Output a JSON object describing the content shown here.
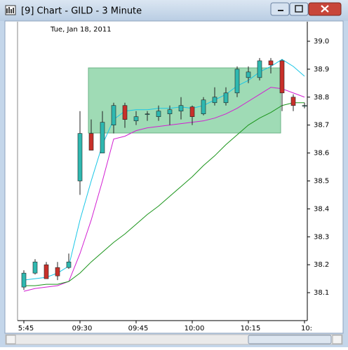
{
  "window": {
    "title": "[9]  Chart - GILD - 3 Minute"
  },
  "chart_data": {
    "type": "candlestick",
    "subtitle": "Tue, Jan 18, 2011",
    "categories": [
      "5:45",
      null,
      null,
      null,
      null,
      "09:30",
      null,
      null,
      null,
      null,
      "09:45",
      null,
      null,
      null,
      null,
      "10:00",
      null,
      null,
      null,
      null,
      "10:15",
      null,
      null,
      null,
      null,
      "10:"
    ],
    "open": [
      38.12,
      38.17,
      38.2,
      38.19,
      38.19,
      38.5,
      38.67,
      38.6,
      38.7,
      38.77,
      38.715,
      38.74,
      38.73,
      38.74,
      38.75,
      38.765,
      38.74,
      38.78,
      38.78,
      38.815,
      38.87,
      38.87,
      38.93,
      38.93,
      38.8,
      38.77
    ],
    "high": [
      38.18,
      38.22,
      38.21,
      38.21,
      38.24,
      38.75,
      38.72,
      38.75,
      38.78,
      38.78,
      38.75,
      38.75,
      38.77,
      38.77,
      38.8,
      38.77,
      38.8,
      38.835,
      38.835,
      38.91,
      38.91,
      38.94,
      38.94,
      38.935,
      38.81,
      38.78
    ],
    "low": [
      38.11,
      38.165,
      38.15,
      38.145,
      38.185,
      38.45,
      38.61,
      38.6,
      38.67,
      38.69,
      38.7,
      38.715,
      38.715,
      38.7,
      38.72,
      38.7,
      38.735,
      38.77,
      38.77,
      38.8,
      38.85,
      38.86,
      38.885,
      38.75,
      38.75,
      38.76
    ],
    "close": [
      38.17,
      38.21,
      38.15,
      38.16,
      38.21,
      38.67,
      38.61,
      38.71,
      38.77,
      38.72,
      38.73,
      38.74,
      38.75,
      38.755,
      38.77,
      38.73,
      38.79,
      38.8,
      38.815,
      38.9,
      38.89,
      38.93,
      38.915,
      38.815,
      38.77,
      38.77
    ],
    "up_color": "#2fb8b0",
    "down_color": "#c8302a",
    "series": [
      {
        "color": "#19c6e6",
        "values": [
          38.145,
          38.15,
          38.155,
          38.17,
          38.195,
          38.36,
          38.5,
          38.63,
          38.72,
          38.75,
          38.755,
          38.755,
          38.76,
          38.76,
          38.765,
          38.76,
          38.77,
          38.79,
          38.81,
          38.84,
          38.86,
          38.89,
          38.91,
          38.935,
          38.91,
          38.875
        ]
      },
      {
        "color": "#d21ed2",
        "values": [
          38.105,
          38.115,
          38.12,
          38.125,
          38.14,
          38.24,
          38.36,
          38.5,
          38.65,
          38.66,
          38.68,
          38.69,
          38.695,
          38.7,
          38.705,
          38.71,
          38.715,
          38.725,
          38.74,
          38.76,
          38.785,
          38.81,
          38.835,
          38.83,
          38.815,
          38.8
        ]
      },
      {
        "color": "#1a941a",
        "values": [
          38.125,
          38.125,
          38.13,
          38.13,
          38.14,
          38.17,
          38.21,
          38.245,
          38.28,
          38.31,
          38.345,
          38.38,
          38.41,
          38.445,
          38.48,
          38.515,
          38.555,
          38.59,
          38.63,
          38.665,
          38.7,
          38.725,
          38.745,
          38.77,
          38.78,
          38.78
        ]
      }
    ],
    "ylim": [
      38.0,
      39.05
    ],
    "yticks": [
      38.1,
      38.2,
      38.3,
      38.4,
      38.5,
      38.6,
      38.7,
      38.8,
      38.9,
      {
        "value": 39.0,
        "label": "39.0"
      }
    ]
  }
}
